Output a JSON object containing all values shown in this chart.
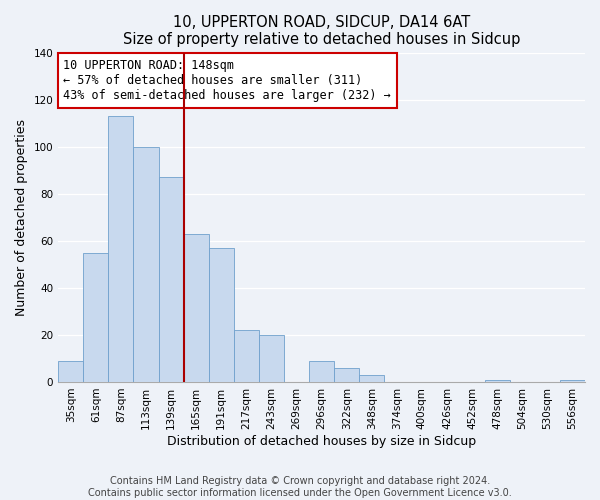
{
  "title": "10, UPPERTON ROAD, SIDCUP, DA14 6AT",
  "subtitle": "Size of property relative to detached houses in Sidcup",
  "xlabel": "Distribution of detached houses by size in Sidcup",
  "ylabel": "Number of detached properties",
  "bar_labels": [
    "35sqm",
    "61sqm",
    "87sqm",
    "113sqm",
    "139sqm",
    "165sqm",
    "191sqm",
    "217sqm",
    "243sqm",
    "269sqm",
    "296sqm",
    "322sqm",
    "348sqm",
    "374sqm",
    "400sqm",
    "426sqm",
    "452sqm",
    "478sqm",
    "504sqm",
    "530sqm",
    "556sqm"
  ],
  "bar_values": [
    9,
    55,
    113,
    100,
    87,
    63,
    57,
    22,
    20,
    0,
    9,
    6,
    3,
    0,
    0,
    0,
    0,
    1,
    0,
    0,
    1
  ],
  "bar_color": "#c8d9ee",
  "bar_edgecolor": "#6fa0cc",
  "vline_index": 4.5,
  "vline_color": "#aa0000",
  "annotation_line1": "10 UPPERTON ROAD: 148sqm",
  "annotation_line2": "← 57% of detached houses are smaller (311)",
  "annotation_line3": "43% of semi-detached houses are larger (232) →",
  "annotation_box_facecolor": "#ffffff",
  "annotation_box_edgecolor": "#cc0000",
  "ylim": [
    0,
    140
  ],
  "yticks": [
    0,
    20,
    40,
    60,
    80,
    100,
    120,
    140
  ],
  "footer_line1": "Contains HM Land Registry data © Crown copyright and database right 2024.",
  "footer_line2": "Contains public sector information licensed under the Open Government Licence v3.0.",
  "background_color": "#eef2f8",
  "plot_bg_color": "#eef2f8",
  "title_fontsize": 10.5,
  "axis_label_fontsize": 9,
  "tick_fontsize": 7.5,
  "annotation_fontsize": 8.5,
  "footer_fontsize": 7
}
